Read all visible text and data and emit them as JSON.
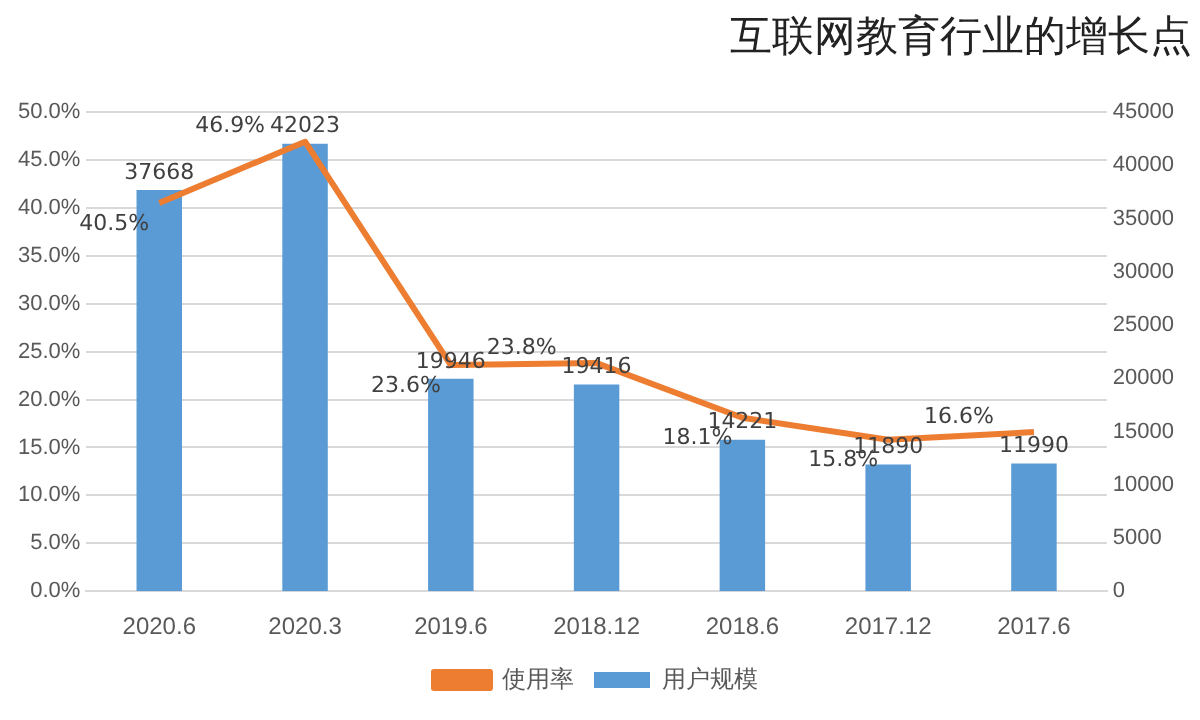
{
  "chart_data": {
    "type": "bar",
    "title": "互联网教育行业的增长点",
    "categories": [
      "2020.6",
      "2020.3",
      "2019.6",
      "2018.12",
      "2018.6",
      "2017.12",
      "2017.6"
    ],
    "series": [
      {
        "name": "使用率",
        "type": "line",
        "axis": "y2",
        "color": "#ed7d31",
        "values": [
          40.5,
          46.9,
          23.6,
          23.8,
          18.1,
          15.8,
          16.6
        ],
        "value_labels": [
          "40.5%",
          "46.9%",
          "23.6%",
          "23.8%",
          "18.1%",
          "15.8%",
          "16.6%"
        ]
      },
      {
        "name": "用户规模",
        "color": "#5b9bd5",
        "values": [
          37668,
          42023,
          19946,
          19416,
          14221,
          11890,
          11990
        ],
        "value_labels": [
          "37668",
          "42023",
          "19946",
          "19416",
          "14221",
          "11890",
          "11990"
        ]
      }
    ],
    "ylim": [
      0,
      45000
    ],
    "yticks": [
      0,
      5000,
      10000,
      15000,
      20000,
      25000,
      30000,
      35000,
      40000,
      45000
    ],
    "y2lim": [
      0,
      50
    ],
    "y2ticks": [
      {
        "value": 0,
        "label": "0.0%"
      },
      {
        "value": 5,
        "label": "5.0%"
      },
      {
        "value": 10,
        "label": "10.0%"
      },
      {
        "value": 15,
        "label": "15.0%"
      },
      {
        "value": 20,
        "label": "20.0%"
      },
      {
        "value": 25,
        "label": "25.0%"
      },
      {
        "value": 30,
        "label": "30.0%"
      },
      {
        "value": 35,
        "label": "35.0%"
      },
      {
        "value": 40,
        "label": "40.0%"
      },
      {
        "value": 45,
        "label": "45.0%"
      },
      {
        "value": 50,
        "label": "50.0%"
      }
    ],
    "grid": "y",
    "legend": "bottom",
    "marker": "none",
    "line_style": "solid"
  }
}
